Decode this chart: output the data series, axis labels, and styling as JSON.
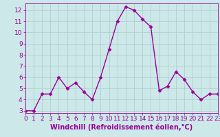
{
  "x": [
    0,
    1,
    2,
    3,
    4,
    5,
    6,
    7,
    8,
    9,
    10,
    11,
    12,
    13,
    14,
    15,
    16,
    17,
    18,
    19,
    20,
    21,
    22,
    23
  ],
  "y": [
    3.0,
    3.0,
    4.5,
    4.5,
    6.0,
    5.0,
    5.5,
    4.7,
    4.0,
    6.0,
    8.5,
    11.0,
    12.3,
    12.0,
    11.2,
    10.5,
    4.8,
    5.2,
    6.5,
    5.8,
    4.7,
    4.0,
    4.5,
    4.5
  ],
  "line_color": "#990099",
  "marker": "D",
  "markersize": 2.5,
  "linewidth": 1.0,
  "xlabel": "Windchill (Refroidissement éolien,°C)",
  "xlim": [
    0,
    23
  ],
  "ylim": [
    2.8,
    12.6
  ],
  "xticks": [
    0,
    1,
    2,
    3,
    4,
    5,
    6,
    7,
    8,
    9,
    10,
    11,
    12,
    13,
    14,
    15,
    16,
    17,
    18,
    19,
    20,
    21,
    22,
    23
  ],
  "yticks": [
    3,
    4,
    5,
    6,
    7,
    8,
    9,
    10,
    11,
    12
  ],
  "bg_color": "#cce8e8",
  "grid_color": "#b0d0d0",
  "tick_color": "#990099",
  "label_color": "#990099",
  "xlabel_fontsize": 7,
  "tick_fontsize": 6.5
}
